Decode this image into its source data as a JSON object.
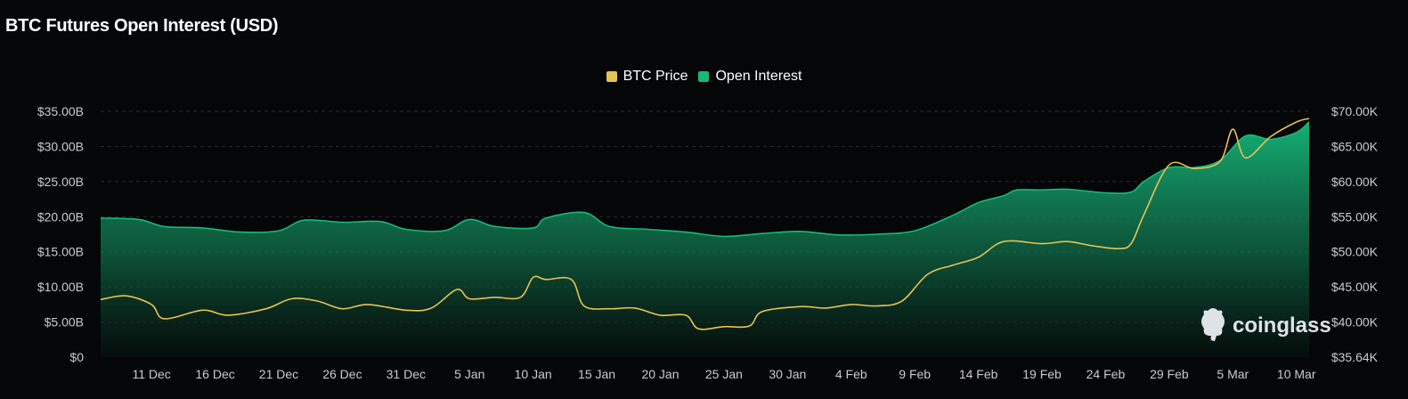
{
  "chart_data": {
    "type": "area",
    "title": "BTC Futures Open Interest (USD)",
    "legend_position": "top-center",
    "grid": true,
    "colors": {
      "btc_price": "#e6c351",
      "open_interest": "#17b87a"
    },
    "x_tick_labels": [
      "11 Dec",
      "16 Dec",
      "21 Dec",
      "26 Dec",
      "31 Dec",
      "5 Jan",
      "10 Jan",
      "15 Jan",
      "20 Jan",
      "25 Jan",
      "30 Jan",
      "4 Feb",
      "9 Feb",
      "14 Feb",
      "19 Feb",
      "24 Feb",
      "29 Feb",
      "5 Mar",
      "10 Mar"
    ],
    "y_left": {
      "tick_labels": [
        "$0",
        "$5.00B",
        "$10.00B",
        "$15.00B",
        "$20.00B",
        "$25.00B",
        "$30.00B",
        "$35.00B"
      ],
      "range": [
        0,
        35
      ]
    },
    "y_right": {
      "tick_labels": [
        "$35.64K",
        "$40.00K",
        "$45.00K",
        "$50.00K",
        "$55.00K",
        "$60.00K",
        "$65.00K",
        "$70.00K"
      ],
      "range": [
        35.64,
        70.0
      ]
    },
    "x_start": "2023-12-07",
    "series": [
      {
        "name": "Open Interest",
        "axis": "left",
        "unit": "USD billions",
        "points": [
          [
            "2023-12-07",
            19.8
          ],
          [
            "2023-12-10",
            19.6
          ],
          [
            "2023-12-12",
            18.6
          ],
          [
            "2023-12-15",
            18.4
          ],
          [
            "2023-12-18",
            17.8
          ],
          [
            "2023-12-21",
            18.0
          ],
          [
            "2023-12-23",
            19.5
          ],
          [
            "2023-12-26",
            19.2
          ],
          [
            "2023-12-29",
            19.3
          ],
          [
            "2023-12-31",
            18.2
          ],
          [
            "2024-01-03",
            18.0
          ],
          [
            "2024-01-05",
            19.6
          ],
          [
            "2024-01-07",
            18.6
          ],
          [
            "2024-01-10",
            18.4
          ],
          [
            "2024-01-11",
            19.8
          ],
          [
            "2024-01-14",
            20.6
          ],
          [
            "2024-01-16",
            18.6
          ],
          [
            "2024-01-19",
            18.2
          ],
          [
            "2024-01-22",
            17.8
          ],
          [
            "2024-01-25",
            17.2
          ],
          [
            "2024-01-28",
            17.6
          ],
          [
            "2024-01-31",
            17.9
          ],
          [
            "2024-02-03",
            17.4
          ],
          [
            "2024-02-06",
            17.5
          ],
          [
            "2024-02-09",
            18.0
          ],
          [
            "2024-02-12",
            20.2
          ],
          [
            "2024-02-14",
            22.0
          ],
          [
            "2024-02-16",
            23.0
          ],
          [
            "2024-02-17",
            23.8
          ],
          [
            "2024-02-19",
            23.8
          ],
          [
            "2024-02-21",
            23.9
          ],
          [
            "2024-02-24",
            23.4
          ],
          [
            "2024-02-26",
            23.5
          ],
          [
            "2024-02-27",
            25.0
          ],
          [
            "2024-02-29",
            27.0
          ],
          [
            "2024-03-02",
            27.0
          ],
          [
            "2024-03-04",
            28.0
          ],
          [
            "2024-03-06",
            31.5
          ],
          [
            "2024-03-08",
            31.0
          ],
          [
            "2024-03-10",
            32.0
          ],
          [
            "2024-03-11",
            33.5
          ]
        ]
      },
      {
        "name": "BTC Price",
        "axis": "right",
        "unit": "USD thousands",
        "points": [
          [
            "2023-12-07",
            43.7
          ],
          [
            "2023-12-09",
            44.2
          ],
          [
            "2023-12-11",
            43.0
          ],
          [
            "2023-12-12",
            41.0
          ],
          [
            "2023-12-15",
            42.2
          ],
          [
            "2023-12-17",
            41.5
          ],
          [
            "2023-12-20",
            42.4
          ],
          [
            "2023-12-22",
            43.8
          ],
          [
            "2023-12-24",
            43.5
          ],
          [
            "2023-12-26",
            42.4
          ],
          [
            "2023-12-28",
            43.0
          ],
          [
            "2023-12-31",
            42.2
          ],
          [
            "2024-01-02",
            42.5
          ],
          [
            "2024-01-04",
            45.1
          ],
          [
            "2024-01-05",
            43.8
          ],
          [
            "2024-01-07",
            44.0
          ],
          [
            "2024-01-09",
            44.0
          ],
          [
            "2024-01-10",
            46.8
          ],
          [
            "2024-01-11",
            46.5
          ],
          [
            "2024-01-13",
            46.5
          ],
          [
            "2024-01-14",
            42.8
          ],
          [
            "2024-01-16",
            42.4
          ],
          [
            "2024-01-18",
            42.5
          ],
          [
            "2024-01-20",
            41.5
          ],
          [
            "2024-01-22",
            41.5
          ],
          [
            "2024-01-23",
            39.6
          ],
          [
            "2024-01-25",
            39.9
          ],
          [
            "2024-01-27",
            40.0
          ],
          [
            "2024-01-28",
            42.0
          ],
          [
            "2024-01-31",
            42.7
          ],
          [
            "2024-02-02",
            42.5
          ],
          [
            "2024-02-04",
            43.0
          ],
          [
            "2024-02-06",
            42.8
          ],
          [
            "2024-02-08",
            43.5
          ],
          [
            "2024-02-10",
            47.2
          ],
          [
            "2024-02-12",
            48.5
          ],
          [
            "2024-02-14",
            49.6
          ],
          [
            "2024-02-16",
            51.8
          ],
          [
            "2024-02-19",
            51.5
          ],
          [
            "2024-02-21",
            51.8
          ],
          [
            "2024-02-23",
            51.2
          ],
          [
            "2024-02-25",
            50.8
          ],
          [
            "2024-02-26",
            51.5
          ],
          [
            "2024-02-27",
            55.5
          ],
          [
            "2024-02-29",
            62.5
          ],
          [
            "2024-03-02",
            62.0
          ],
          [
            "2024-03-04",
            63.0
          ],
          [
            "2024-03-05",
            67.5
          ],
          [
            "2024-03-06",
            63.5
          ],
          [
            "2024-03-08",
            66.5
          ],
          [
            "2024-03-10",
            68.5
          ],
          [
            "2024-03-11",
            69.0
          ]
        ]
      }
    ]
  },
  "watermark": {
    "brand": "coinglass"
  }
}
